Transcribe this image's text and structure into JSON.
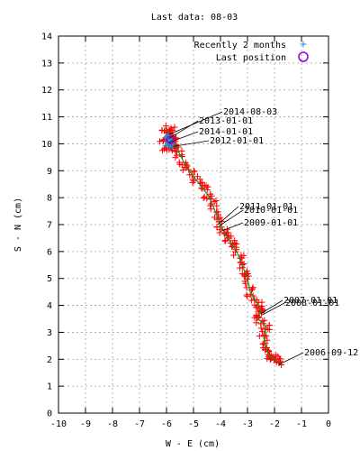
{
  "chart_data": {
    "type": "scatter",
    "title": "Last data: 08-03",
    "xlabel": "W - E (cm)",
    "ylabel": "S - N (cm)",
    "xlim": [
      -10,
      0
    ],
    "ylim": [
      0,
      14
    ],
    "xticks": [
      "-10",
      "-9",
      "-8",
      "-7",
      "-6",
      "-5",
      "-4",
      "-3",
      "-2",
      "-1",
      "0"
    ],
    "yticks": [
      "0",
      "1",
      "2",
      "3",
      "4",
      "5",
      "6",
      "7",
      "8",
      "9",
      "10",
      "11",
      "12",
      "13",
      "14"
    ],
    "grid": true,
    "legend_position": "top-right",
    "legend": [
      {
        "label": "Recently 2 months",
        "marker": "plus",
        "color": "#1a8cd8"
      },
      {
        "label": "Last position",
        "marker": "circle",
        "color": "#9400d3"
      }
    ],
    "colors": {
      "track": "#ff0000",
      "recent": "#1a8cd8",
      "last": "#9400d3",
      "trend": "#1e8c1e"
    },
    "track": [
      [
        -1.8,
        1.85
      ],
      [
        -2.0,
        2.0
      ],
      [
        -2.2,
        2.1
      ],
      [
        -2.3,
        2.4
      ],
      [
        -2.4,
        2.8
      ],
      [
        -2.3,
        3.2
      ],
      [
        -2.6,
        3.5
      ],
      [
        -2.5,
        3.8
      ],
      [
        -2.6,
        4.0
      ],
      [
        -2.9,
        4.5
      ],
      [
        -3.0,
        5.0
      ],
      [
        -3.2,
        5.5
      ],
      [
        -3.4,
        6.0
      ],
      [
        -3.6,
        6.3
      ],
      [
        -3.8,
        6.6
      ],
      [
        -4.0,
        7.0
      ],
      [
        -4.2,
        7.5
      ],
      [
        -4.4,
        8.0
      ],
      [
        -4.7,
        8.4
      ],
      [
        -5.0,
        8.8
      ],
      [
        -5.3,
        9.2
      ],
      [
        -5.5,
        9.6
      ],
      [
        -5.7,
        10.0
      ],
      [
        -5.9,
        10.3
      ],
      [
        -6.0,
        10.6
      ]
    ],
    "recent": [
      [
        -5.95,
        10.05
      ],
      [
        -5.9,
        10.15
      ],
      [
        -5.85,
        10.25
      ],
      [
        -5.8,
        10.1
      ],
      [
        -5.95,
        10.3
      ],
      [
        -5.9,
        9.95
      ]
    ],
    "last_position": [
      -5.85,
      10.15
    ],
    "date_labels": [
      {
        "text": "2014-08-03",
        "anchor": [
          -5.9,
          10.35
        ]
      },
      {
        "text": "2013-01-01",
        "anchor": [
          -5.9,
          10.2
        ]
      },
      {
        "text": "2014-01-01",
        "anchor": [
          -5.9,
          10.05
        ]
      },
      {
        "text": "2012-01-01",
        "anchor": [
          -5.75,
          9.9
        ]
      },
      {
        "text": "2011-01-01",
        "anchor": [
          -4.1,
          7.0
        ]
      },
      {
        "text": "2010-01-01",
        "anchor": [
          -4.05,
          6.95
        ]
      },
      {
        "text": "2009-01-01",
        "anchor": [
          -4.0,
          6.75
        ]
      },
      {
        "text": "2007-01-01",
        "anchor": [
          -2.5,
          3.7
        ]
      },
      {
        "text": "2008-01-01",
        "anchor": [
          -2.45,
          3.65
        ]
      },
      {
        "text": "2006-09-12",
        "anchor": [
          -1.85,
          1.8
        ]
      }
    ]
  }
}
